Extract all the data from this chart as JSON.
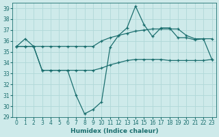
{
  "xlabel": "Humidex (Indice chaleur)",
  "bg_color": "#ceeaea",
  "grid_color": "#b0d8d8",
  "line_color": "#1a6e6e",
  "xlim": [
    -0.5,
    23.5
  ],
  "ylim": [
    29,
    39.5
  ],
  "yticks": [
    29,
    30,
    31,
    32,
    33,
    34,
    35,
    36,
    37,
    38,
    39
  ],
  "xticks": [
    0,
    1,
    2,
    3,
    4,
    5,
    6,
    7,
    8,
    9,
    10,
    11,
    12,
    13,
    14,
    15,
    16,
    17,
    18,
    19,
    20,
    21,
    22,
    23
  ],
  "line1_x": [
    0,
    1,
    2,
    3,
    4,
    5,
    6,
    7,
    8,
    9,
    10,
    11,
    12,
    13,
    14,
    15,
    16,
    17,
    18,
    19,
    20,
    21,
    22,
    23
  ],
  "line1_y": [
    35.5,
    36.2,
    35.5,
    33.3,
    33.3,
    33.3,
    33.3,
    31.0,
    29.3,
    29.7,
    30.4,
    35.4,
    36.5,
    37.2,
    39.2,
    37.5,
    36.4,
    37.2,
    37.2,
    36.3,
    36.3,
    36.1,
    36.2,
    34.3
  ],
  "line2_x": [
    0,
    1,
    2,
    3,
    4,
    5,
    6,
    7,
    8,
    9,
    10,
    11,
    12,
    13,
    14,
    15,
    16,
    17,
    18,
    19,
    20,
    21,
    22,
    23
  ],
  "line2_y": [
    35.5,
    35.5,
    35.5,
    35.5,
    35.5,
    35.5,
    35.5,
    35.5,
    35.5,
    35.5,
    36.0,
    36.3,
    36.5,
    36.7,
    36.9,
    37.0,
    37.1,
    37.1,
    37.1,
    37.1,
    36.5,
    36.2,
    36.2,
    36.2
  ],
  "line3_x": [
    0,
    1,
    2,
    3,
    4,
    5,
    6,
    7,
    8,
    9,
    10,
    11,
    12,
    13,
    14,
    15,
    16,
    17,
    18,
    19,
    20,
    21,
    22,
    23
  ],
  "line3_y": [
    35.5,
    35.5,
    35.5,
    33.3,
    33.3,
    33.3,
    33.3,
    33.3,
    33.3,
    33.3,
    33.5,
    33.8,
    34.0,
    34.2,
    34.3,
    34.3,
    34.3,
    34.3,
    34.2,
    34.2,
    34.2,
    34.2,
    34.2,
    34.3
  ],
  "tick_fontsize": 5.5,
  "xlabel_fontsize": 6.5
}
